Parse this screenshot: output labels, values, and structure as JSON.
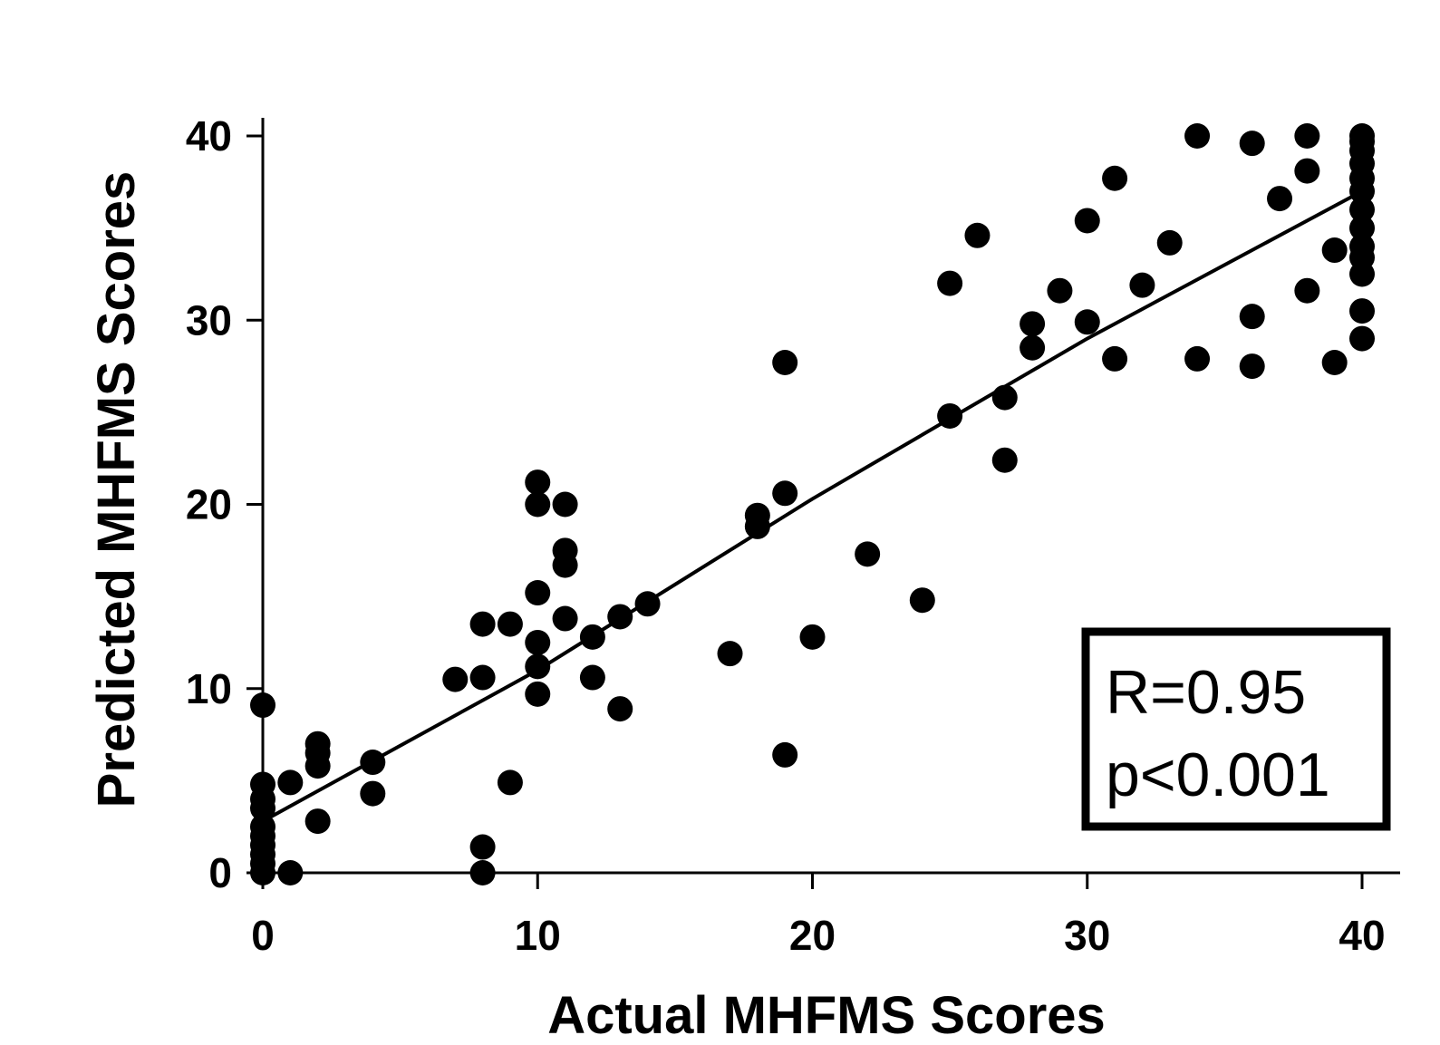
{
  "chart_data": {
    "type": "scatter",
    "title": "",
    "xlabel": "Actual MHFMS Scores",
    "ylabel": "Predicted MHFMS Scores",
    "xlim": [
      0,
      40
    ],
    "ylim": [
      0,
      40
    ],
    "x_ticks": [
      0,
      10,
      20,
      30,
      40
    ],
    "y_ticks": [
      0,
      10,
      20,
      30,
      40
    ],
    "grid": false,
    "legend": "none",
    "colors": {
      "points": "#000000",
      "fit_line": "#000000"
    },
    "fit_line": {
      "x": [
        0,
        10,
        20,
        30,
        40
      ],
      "y": [
        2.8,
        11.0,
        20.3,
        29.0,
        37.0
      ]
    },
    "stats": {
      "r": "R=0.95",
      "p": "p<0.001"
    },
    "points": [
      [
        0,
        0
      ],
      [
        0,
        0.5
      ],
      [
        0,
        1
      ],
      [
        0,
        1.5
      ],
      [
        0,
        2
      ],
      [
        0,
        2.5
      ],
      [
        0,
        3.5
      ],
      [
        0,
        4
      ],
      [
        0,
        4.8
      ],
      [
        0,
        9.1
      ],
      [
        1,
        0
      ],
      [
        1,
        4.9
      ],
      [
        2,
        2.8
      ],
      [
        2,
        5.8
      ],
      [
        2,
        6.5
      ],
      [
        2,
        7
      ],
      [
        4,
        4.3
      ],
      [
        4,
        6
      ],
      [
        7,
        10.5
      ],
      [
        8,
        0
      ],
      [
        8,
        1.4
      ],
      [
        8,
        10.6
      ],
      [
        8,
        13.5
      ],
      [
        9,
        4.9
      ],
      [
        9,
        13.5
      ],
      [
        10,
        9.7
      ],
      [
        10,
        11.2
      ],
      [
        10,
        12.5
      ],
      [
        10,
        15.2
      ],
      [
        10,
        20
      ],
      [
        10,
        21.2
      ],
      [
        11,
        13.8
      ],
      [
        11,
        16.7
      ],
      [
        11,
        17.5
      ],
      [
        11,
        20
      ],
      [
        12,
        10.6
      ],
      [
        12,
        12.8
      ],
      [
        13,
        8.9
      ],
      [
        13,
        13.9
      ],
      [
        14,
        14.6
      ],
      [
        17,
        11.9
      ],
      [
        18,
        18.8
      ],
      [
        18,
        19.4
      ],
      [
        19,
        6.4
      ],
      [
        19,
        20.6
      ],
      [
        19,
        27.7
      ],
      [
        20,
        12.8
      ],
      [
        22,
        17.3
      ],
      [
        24,
        14.8
      ],
      [
        25,
        24.8
      ],
      [
        25,
        32
      ],
      [
        26,
        34.6
      ],
      [
        27,
        22.4
      ],
      [
        27,
        25.8
      ],
      [
        28,
        28.5
      ],
      [
        28,
        29.8
      ],
      [
        29,
        31.6
      ],
      [
        30,
        29.9
      ],
      [
        30,
        35.4
      ],
      [
        31,
        27.9
      ],
      [
        31,
        37.7
      ],
      [
        32,
        31.9
      ],
      [
        33,
        34.2
      ],
      [
        34,
        27.9
      ],
      [
        34,
        40
      ],
      [
        36,
        27.5
      ],
      [
        36,
        30.2
      ],
      [
        36,
        39.6
      ],
      [
        37,
        36.6
      ],
      [
        38,
        31.6
      ],
      [
        38,
        38.1
      ],
      [
        38,
        40
      ],
      [
        39,
        27.7
      ],
      [
        39,
        33.8
      ],
      [
        40,
        29
      ],
      [
        40,
        30.5
      ],
      [
        40,
        32.5
      ],
      [
        40,
        33.4
      ],
      [
        40,
        34
      ],
      [
        40,
        35
      ],
      [
        40,
        36
      ],
      [
        40,
        37
      ],
      [
        40,
        37.7
      ],
      [
        40,
        38.5
      ],
      [
        40,
        39.2
      ],
      [
        40,
        39.7
      ],
      [
        40,
        40
      ]
    ]
  }
}
